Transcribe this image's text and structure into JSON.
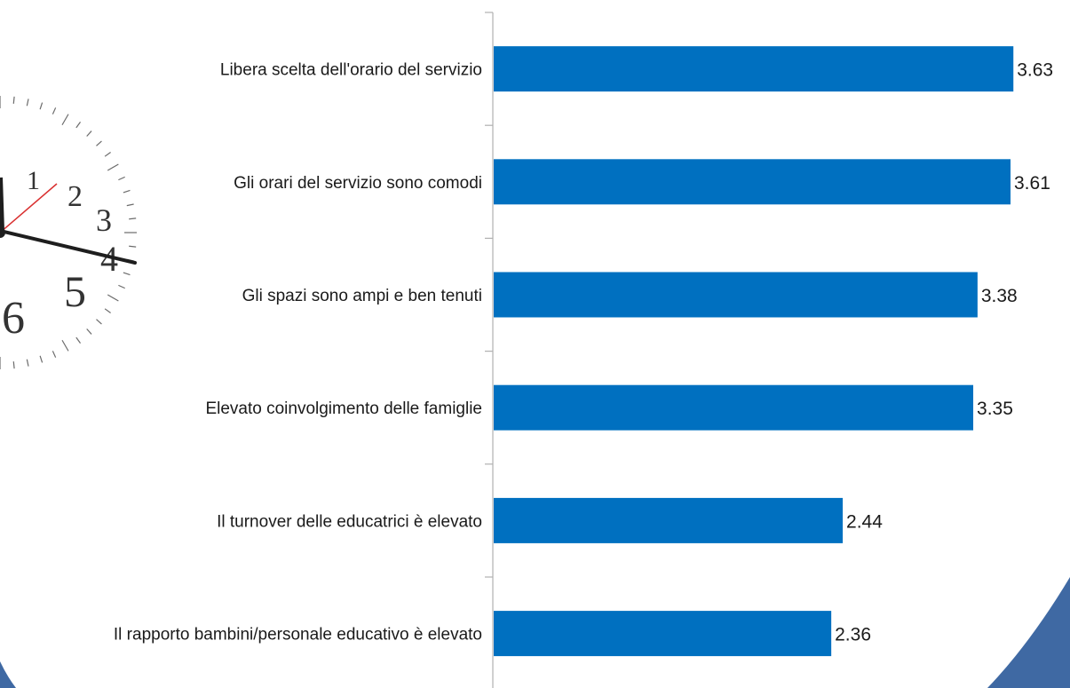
{
  "chart_data": {
    "type": "bar",
    "orientation": "horizontal",
    "categories": [
      "Libera scelta dell'orario del servizio",
      "Gli orari del servizio sono comodi",
      "Gli spazi sono ampi e ben tenuti",
      "Elevato coinvolgimento delle famiglie",
      "Il turnover delle educatrici è elevato",
      "Il rapporto bambini/personale educativo è elevato"
    ],
    "values": [
      3.63,
      3.61,
      3.38,
      3.35,
      2.44,
      2.36
    ],
    "value_labels": [
      "3.63",
      "3.61",
      "3.38",
      "3.35",
      "2.44",
      "2.36"
    ],
    "xlim": [
      0,
      4
    ],
    "grid": false,
    "legend": "none",
    "bar_color": "#0070C0"
  },
  "decoration": {
    "clock_numerals": [
      "1",
      "2",
      "3",
      "4",
      "5",
      "6"
    ],
    "clock_icon": "clock-icon",
    "frame_color": "#3f69a3"
  }
}
